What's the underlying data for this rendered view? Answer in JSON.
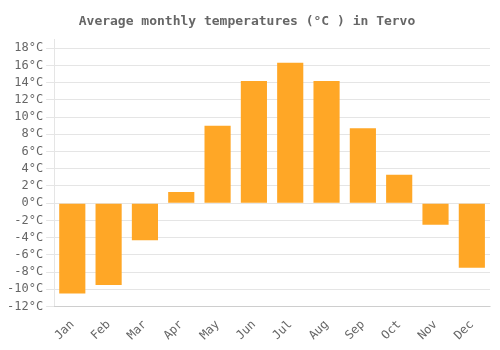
{
  "chart_data": {
    "type": "bar",
    "title": "Average monthly temperatures (°C ) in Tervo",
    "categories": [
      "Jan",
      "Feb",
      "Mar",
      "Apr",
      "May",
      "Jun",
      "Jul",
      "Aug",
      "Sep",
      "Oct",
      "Nov",
      "Dec"
    ],
    "values": [
      -10.5,
      -9.5,
      -4.3,
      1.3,
      9.0,
      14.2,
      16.3,
      14.2,
      8.7,
      3.3,
      -2.5,
      -7.5
    ],
    "color": "#FFA726",
    "ylim": [
      -12,
      19
    ],
    "yticks": [
      {
        "value": -12,
        "label": "-12°C"
      },
      {
        "value": -10,
        "label": "-10°C"
      },
      {
        "value": -8,
        "label": "-8°C"
      },
      {
        "value": -6,
        "label": "-6°C"
      },
      {
        "value": -4,
        "label": "-4°C"
      },
      {
        "value": -2,
        "label": "-2°C"
      },
      {
        "value": 0,
        "label": "0°C"
      },
      {
        "value": 2,
        "label": "2°C"
      },
      {
        "value": 4,
        "label": "4°C"
      },
      {
        "value": 6,
        "label": "6°C"
      },
      {
        "value": 8,
        "label": "8°C"
      },
      {
        "value": 10,
        "label": "10°C"
      },
      {
        "value": 12,
        "label": "12°C"
      },
      {
        "value": 14,
        "label": "14°C"
      },
      {
        "value": 16,
        "label": "16°C"
      },
      {
        "value": 18,
        "label": "18°C"
      }
    ],
    "grid": true
  }
}
